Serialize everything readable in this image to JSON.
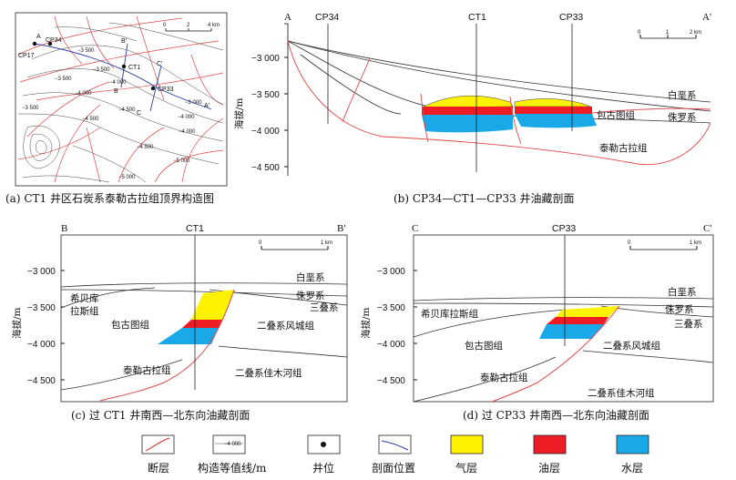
{
  "panel_a": {
    "caption": "(a) CT1 井区石炭系泰勒古拉组顶界构造图",
    "wells": [
      "CP17",
      "CP34",
      "CT1",
      "CP33"
    ],
    "section_letters": [
      "A",
      "A′",
      "B",
      "B′",
      "C",
      "C′"
    ],
    "scale": {
      "zero": "0",
      "mid": "2",
      "end": "4 km"
    },
    "contours": [
      "−3 500",
      "−3 500",
      "−3 500",
      "−4 000",
      "−4 000",
      "−4 500",
      "−4 500",
      "−4 000",
      "−4 500",
      "−5 000",
      "−5 000",
      "−3 000",
      "−3 500",
      "−4 000"
    ]
  },
  "panel_b": {
    "caption": "(b) CP34—CT1—CP33 井油藏剖面",
    "ends": {
      "left": "A",
      "right": "A′"
    },
    "wells": [
      "CP34",
      "CT1",
      "CP33"
    ],
    "ylabel": "海拔/m",
    "yticks": [
      "−3 000",
      "−3 500",
      "−4 000",
      "−4 500"
    ],
    "scale": {
      "zero": "0",
      "mid": "1",
      "end": "2 km"
    },
    "units": [
      "白垩系",
      "侏罗系",
      "包古图组",
      "泰勒古拉组"
    ]
  },
  "panel_c": {
    "caption": "(c) 过 CT1 井南西—北东向油藏剖面",
    "ends": {
      "left": "B",
      "right": "B′"
    },
    "well": "CT1",
    "ylabel": "海拔/m",
    "yticks": [
      "−3 000",
      "−3 500",
      "−4 000",
      "−4 500"
    ],
    "scale": {
      "zero": "0",
      "end": "1 km"
    },
    "units": [
      "白垩系",
      "侏罗系",
      "三叠系",
      "希贝库",
      "拉斯组",
      "包古图组",
      "二叠系风城组",
      "泰勒古拉组",
      "二叠系佳木河组"
    ]
  },
  "panel_d": {
    "caption": "(d) 过 CP33 井南西—北东向油藏剖面",
    "ends": {
      "left": "C",
      "right": "C′"
    },
    "well": "CP33",
    "ylabel": "海拔/m",
    "yticks": [
      "−3 000",
      "−3 500",
      "−4 000",
      "−4 500"
    ],
    "scale": {
      "zero": "0",
      "end": "1 km"
    },
    "units": [
      "白垩系",
      "侏罗系",
      "三叠系",
      "希贝库拉斯组",
      "包古图组",
      "二叠系风城组",
      "泰勒古拉组",
      "二叠系佳木河组"
    ]
  },
  "legend": {
    "items": [
      {
        "label": "断层"
      },
      {
        "label": "构造等值线/m",
        "sample": "−4 000"
      },
      {
        "label": "井位"
      },
      {
        "label": "剖面位置"
      },
      {
        "label": "气层",
        "color": "#fff200"
      },
      {
        "label": "油层",
        "color": "#ee1c25"
      },
      {
        "label": "水层",
        "color": "#19a9e8"
      }
    ]
  }
}
